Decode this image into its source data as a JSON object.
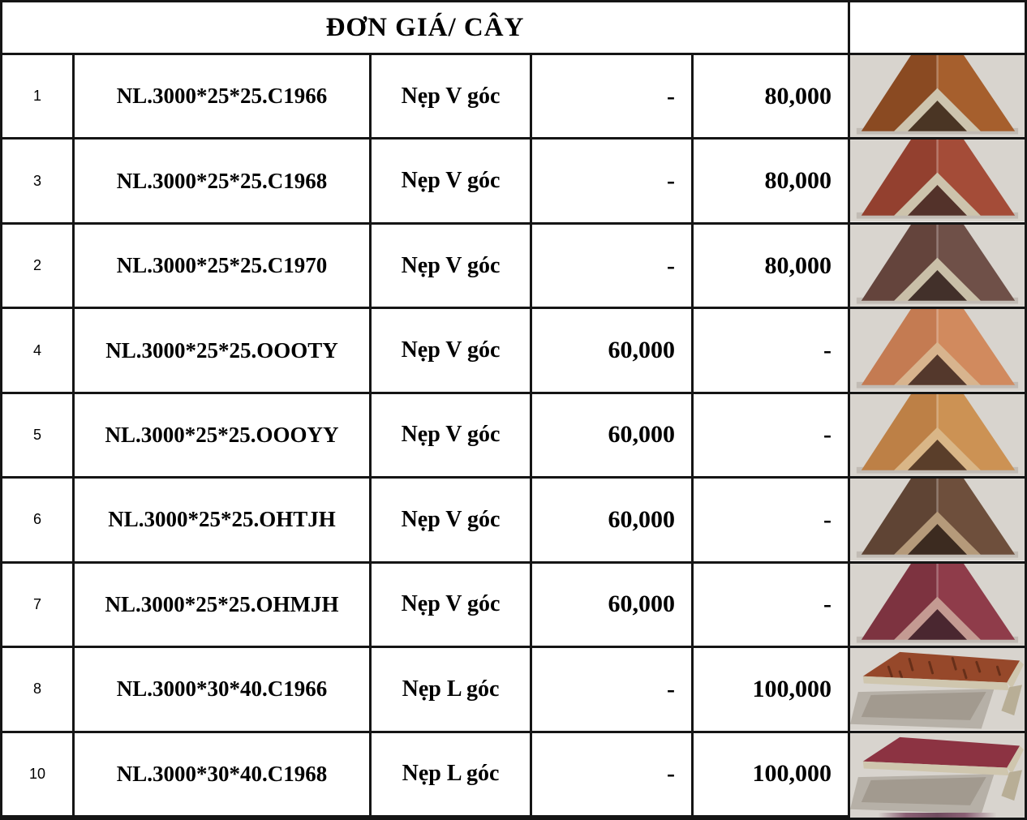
{
  "header": {
    "title": "ĐƠN GIÁ/ CÂY"
  },
  "rows": [
    {
      "no": "1",
      "code": "NL.3000*25*25.C1966",
      "type": "Nẹp V góc",
      "price1": "-",
      "price2": "80,000",
      "photo": {
        "profile": "v",
        "alt": "wood V-angle trim, red-brown grain",
        "bg": "#d8d4ce",
        "faceL": "#8a4a22",
        "faceR": "#a65f2d",
        "edge": "#cdc4ae",
        "inner": "#4a3524"
      }
    },
    {
      "no": "3",
      "code": "NL.3000*25*25.C1968",
      "type": "Nẹp V góc",
      "price1": "-",
      "price2": "80,000",
      "photo": {
        "profile": "v",
        "alt": "wood V-angle trim, dark red",
        "bg": "#d8d4ce",
        "faceL": "#93402f",
        "faceR": "#a44c38",
        "edge": "#cdc3ac",
        "inner": "#53322a"
      }
    },
    {
      "no": "2",
      "code": "NL.3000*25*25.C1970",
      "type": "Nẹp V góc",
      "price1": "-",
      "price2": "80,000",
      "photo": {
        "profile": "v",
        "alt": "wood V-angle trim, dark walnut",
        "bg": "#d9d5cf",
        "faceL": "#64443c",
        "faceR": "#6f5048",
        "edge": "#c9bfa8",
        "inner": "#42302a"
      }
    },
    {
      "no": "4",
      "code": "NL.3000*25*25.OOOTY",
      "type": "Nẹp V góc",
      "price1": "60,000",
      "price2": "-",
      "photo": {
        "profile": "v",
        "alt": "wood V-angle trim, light salmon",
        "bg": "#d8d4ce",
        "faceL": "#c47b52",
        "faceR": "#d18a5e",
        "edge": "#d8b48e",
        "inner": "#54382c"
      }
    },
    {
      "no": "5",
      "code": "NL.3000*25*25.OOOYY",
      "type": "Nẹp V góc",
      "price1": "60,000",
      "price2": "-",
      "photo": {
        "profile": "v",
        "alt": "wood V-angle trim, light oak",
        "bg": "#d8d4ce",
        "faceL": "#bd8046",
        "faceR": "#cc9254",
        "edge": "#d9b687",
        "inner": "#5a3e2a"
      }
    },
    {
      "no": "6",
      "code": "NL.3000*25*25.OHTJH",
      "type": "Nẹp V góc",
      "price1": "60,000",
      "price2": "-",
      "photo": {
        "profile": "v",
        "alt": "wood V-angle trim, dark brown",
        "bg": "#d8d4ce",
        "faceL": "#5f4434",
        "faceR": "#6e4f3c",
        "edge": "#b59a7a",
        "inner": "#3c2b20"
      }
    },
    {
      "no": "7",
      "code": "NL.3000*25*25.OHMJH",
      "type": "Nẹp V góc",
      "price1": "60,000",
      "price2": "-",
      "photo": {
        "profile": "v",
        "alt": "wood V-angle trim, maroon red",
        "bg": "#d8d4ce",
        "faceL": "#7d3340",
        "faceR": "#8f3c4a",
        "edge": "#c49a92",
        "inner": "#4a2730"
      }
    },
    {
      "no": "8",
      "code": "NL.3000*30*40.C1966",
      "type": "Nẹp L góc",
      "price1": "-",
      "price2": "100,000",
      "photo": {
        "profile": "l",
        "alt": "wood L-channel trim, red-brown grain",
        "bg": "#d8d4ce",
        "top": "#96482a",
        "edge": "#cfc6ae",
        "wall": "#b8ae96",
        "shadow": "#8e8478",
        "grain": true
      }
    },
    {
      "no": "10",
      "code": "NL.3000*30*40.C1968",
      "type": "Nẹp L góc",
      "price1": "-",
      "price2": "100,000",
      "photo": {
        "profile": "l",
        "alt": "wood L-channel trim, dark red",
        "bg": "#d8d4ce",
        "top": "#8c3342",
        "edge": "#cfc6ae",
        "wall": "#b8ae96",
        "shadow": "#8e8478",
        "grain": false
      }
    }
  ],
  "colors": {
    "grid_line": "#151515",
    "text": "#000000",
    "photo_background": "#d8d4ce"
  }
}
